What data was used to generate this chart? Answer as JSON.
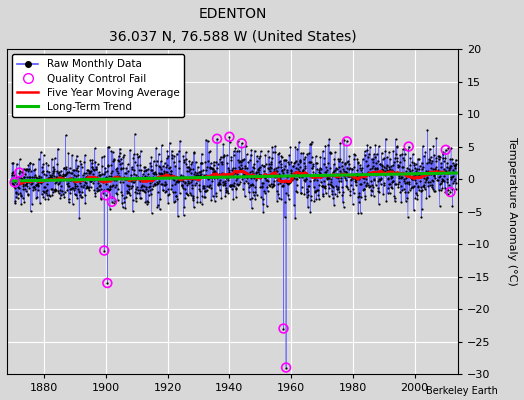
{
  "title": "EDENTON",
  "subtitle": "36.037 N, 76.588 W (United States)",
  "ylabel": "Temperature Anomaly (°C)",
  "credit": "Berkeley Earth",
  "xlim": [
    1868,
    2014
  ],
  "ylim": [
    -30,
    20
  ],
  "yticks": [
    -30,
    -25,
    -20,
    -15,
    -10,
    -5,
    0,
    5,
    10,
    15,
    20
  ],
  "xticks": [
    1880,
    1900,
    1920,
    1940,
    1960,
    1980,
    2000
  ],
  "background_color": "#d8d8d8",
  "plot_bg_color": "#d8d8d8",
  "raw_line_color": "#5555ff",
  "raw_dot_color": "#000000",
  "qc_fail_color": "#ff00ff",
  "moving_avg_color": "#ff0000",
  "trend_color": "#00bb00",
  "seed": 42,
  "start_year": 1869.5,
  "end_year": 2013.5,
  "sparse_end_year": 1895,
  "dense_start_year": 1895
}
